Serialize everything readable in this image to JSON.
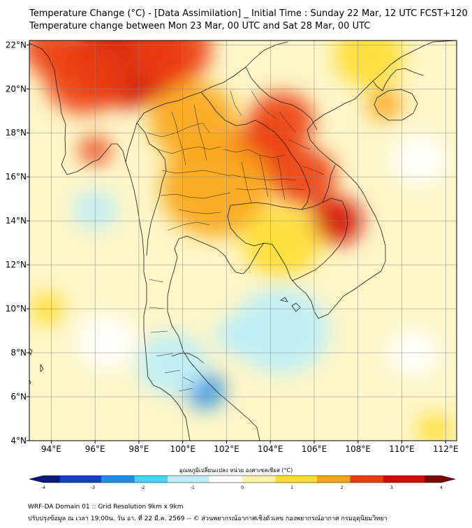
{
  "title": {
    "line1": "Temperature Change (°C) - [Data Assimilation] _ Initial Time : Sunday 22 Mar, 12 UTC FCST+120",
    "line2": "Temperature change between Mon 23 Mar, 00 UTC and Sat 28 Mar, 00 UTC"
  },
  "map": {
    "lon_range": [
      93,
      112.5
    ],
    "lat_range": [
      4,
      22.2
    ],
    "x_ticks": [
      {
        "lon": 94,
        "label": "94°E"
      },
      {
        "lon": 96,
        "label": "96°E"
      },
      {
        "lon": 98,
        "label": "98°E"
      },
      {
        "lon": 100,
        "label": "100°E"
      },
      {
        "lon": 102,
        "label": "102°E"
      },
      {
        "lon": 104,
        "label": "104°E"
      },
      {
        "lon": 106,
        "label": "106°E"
      },
      {
        "lon": 108,
        "label": "108°E"
      },
      {
        "lon": 110,
        "label": "110°E"
      },
      {
        "lon": 112,
        "label": "112°E"
      }
    ],
    "y_ticks": [
      {
        "lat": 4,
        "label": "4°N"
      },
      {
        "lat": 6,
        "label": "6°N"
      },
      {
        "lat": 8,
        "label": "8°N"
      },
      {
        "lat": 10,
        "label": "10°N"
      },
      {
        "lat": 12,
        "label": "12°N"
      },
      {
        "lat": 14,
        "label": "14°N"
      },
      {
        "lat": 16,
        "label": "16°N"
      },
      {
        "lat": 18,
        "label": "18°N"
      },
      {
        "lat": 20,
        "label": "20°N"
      },
      {
        "lat": 22,
        "label": "22°N"
      }
    ],
    "grid": true,
    "field_blobs": [
      {
        "lon": 97.5,
        "lat": 21.5,
        "value": 3.0,
        "r": 2.6
      },
      {
        "lon": 99.5,
        "lat": 21.8,
        "value": 2.9,
        "r": 1.8
      },
      {
        "lon": 95.5,
        "lat": 20.5,
        "value": 2.6,
        "r": 1.8
      },
      {
        "lon": 94.0,
        "lat": 21.8,
        "value": 2.4,
        "r": 1.3
      },
      {
        "lon": 96.0,
        "lat": 17.2,
        "value": 2.5,
        "r": 0.7
      },
      {
        "lon": 103.5,
        "lat": 17.2,
        "value": 2.9,
        "r": 1.4
      },
      {
        "lon": 105.5,
        "lat": 16.0,
        "value": 2.7,
        "r": 1.5
      },
      {
        "lon": 107.0,
        "lat": 14.0,
        "value": 3.0,
        "r": 1.2
      },
      {
        "lon": 104.5,
        "lat": 18.5,
        "value": 2.4,
        "r": 1.5
      },
      {
        "lon": 101.5,
        "lat": 15.5,
        "value": 1.6,
        "r": 2.5
      },
      {
        "lon": 100.5,
        "lat": 18.5,
        "value": 1.5,
        "r": 2.0
      },
      {
        "lon": 109.2,
        "lat": 19.3,
        "value": 2.1,
        "r": 0.8
      },
      {
        "lon": 104.5,
        "lat": 13.0,
        "value": 1.2,
        "r": 1.8
      },
      {
        "lon": 108.5,
        "lat": 21.5,
        "value": 1.2,
        "r": 1.6
      },
      {
        "lon": 93.8,
        "lat": 10.0,
        "value": 1.4,
        "r": 0.8
      },
      {
        "lon": 101.0,
        "lat": 6.3,
        "value": -2.2,
        "r": 0.9
      },
      {
        "lon": 104.5,
        "lat": 9.0,
        "value": -1.3,
        "r": 2.2
      },
      {
        "lon": 99.5,
        "lat": 7.5,
        "value": -1.0,
        "r": 1.6
      },
      {
        "lon": 96.0,
        "lat": 14.5,
        "value": -0.9,
        "r": 1.0
      },
      {
        "lon": 96.5,
        "lat": 8.5,
        "value": -0.7,
        "r": 1.4
      },
      {
        "lon": 110.8,
        "lat": 16.8,
        "value": -0.7,
        "r": 1.3
      },
      {
        "lon": 110.5,
        "lat": 8.0,
        "value": -0.6,
        "r": 1.2
      },
      {
        "lon": 102.5,
        "lat": 8.8,
        "value": -0.9,
        "r": 1.0
      },
      {
        "lon": 111.5,
        "lat": 4.5,
        "value": 1.2,
        "r": 0.8
      }
    ]
  },
  "colorbar": {
    "title": "อุณหภูมิเปลี่ยนแปลง หน่วย องศาเซลเซียส (°C)",
    "min": -4,
    "max": 4,
    "ticks": [
      "-4",
      "-3",
      "-2",
      "-1",
      "0",
      "1",
      "2",
      "3",
      "4"
    ],
    "colors": [
      "#081a7a",
      "#1541c9",
      "#1e8ee8",
      "#47d3f5",
      "#bdeef8",
      "#ffffff",
      "#fdf3a6",
      "#fedd30",
      "#f9a51a",
      "#ec3e0c",
      "#d40a05",
      "#7a0a0a"
    ]
  },
  "footer": {
    "line1": "WRF-DA Domain 01 :: Grid Resolution 9km x 9km",
    "line2": "ปรับปรุงข้อมูล ณ เวลา 19:00น. วัน อา. ที่ 22 มี.ค. 2569 -- © ส่วนพยากรณ์อากาศเชิงตัวเลข กองพยากรณ์อากาศ กรมอุตุนิยมวิทยา"
  }
}
